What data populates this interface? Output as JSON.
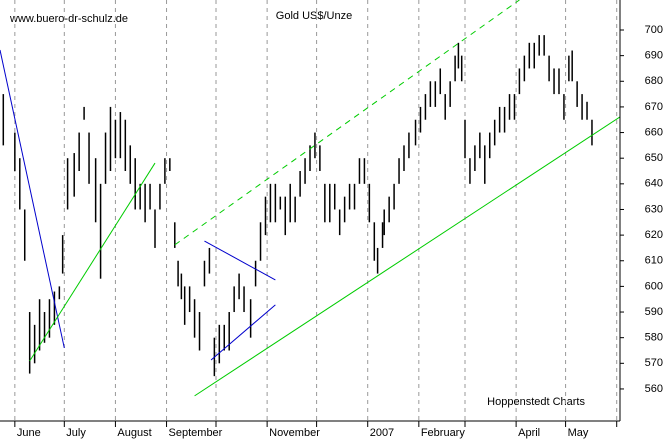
{
  "chart_data": {
    "type": "ohlc",
    "title": "Gold US$/Unze",
    "source": "www.buero-dr-schulz.de",
    "credit": "Hoppenstedt Charts",
    "color": "#000000",
    "xlim": [
      -9,
      367
    ],
    "ylim": [
      547.5,
      711.7
    ],
    "yticks": [
      560,
      570,
      580,
      590,
      600,
      610,
      620,
      630,
      640,
      650,
      660,
      670,
      680,
      690,
      700
    ],
    "xticks": [
      {
        "value": 0,
        "label": "June"
      },
      {
        "value": 30,
        "label": "July"
      },
      {
        "value": 61,
        "label": "August"
      },
      {
        "value": 92,
        "label": "September"
      },
      {
        "value": 122,
        "label": null
      },
      {
        "value": 153,
        "label": "November"
      },
      {
        "value": 183,
        "label": null
      },
      {
        "value": 214,
        "label": "2007"
      },
      {
        "value": 245,
        "label": "February"
      },
      {
        "value": 273,
        "label": null
      },
      {
        "value": 304,
        "label": "April"
      },
      {
        "value": 334,
        "label": "May"
      },
      {
        "value": 365,
        "label": null
      }
    ],
    "grid": true,
    "x": [
      -7,
      0,
      3,
      6,
      9,
      12,
      15,
      18,
      21,
      24,
      27,
      29,
      32,
      36,
      39,
      42,
      45,
      49,
      52,
      55,
      58,
      61,
      64,
      67,
      70,
      73,
      76,
      79,
      82,
      85,
      88,
      91,
      94,
      97,
      99,
      101,
      103,
      106,
      109,
      112,
      115,
      118,
      121,
      124,
      127,
      130,
      133,
      136,
      139,
      143,
      146,
      149,
      152,
      155,
      158,
      161,
      164,
      167,
      170,
      173,
      176,
      179,
      182,
      185,
      188,
      191,
      194,
      197,
      200,
      203,
      206,
      209,
      212,
      215,
      218,
      220,
      223,
      224,
      227,
      230,
      233,
      236,
      239,
      243,
      246,
      249,
      252,
      255,
      258,
      261,
      264,
      267,
      269,
      271,
      273,
      276,
      279,
      282,
      285,
      288,
      291,
      294,
      297,
      300,
      303,
      306,
      309,
      312,
      315,
      318,
      321,
      324,
      327,
      330,
      333,
      336,
      338,
      341,
      344,
      347,
      350
    ],
    "high": [
      675,
      660,
      650,
      630,
      590,
      585,
      595,
      590,
      595,
      598,
      600,
      620,
      650,
      652,
      660,
      670,
      660,
      650,
      640,
      660,
      670,
      665,
      668,
      665,
      655,
      650,
      640,
      640,
      640,
      630,
      640,
      650,
      650,
      625,
      610,
      605,
      600,
      600,
      595,
      590,
      610,
      615,
      580,
      585,
      585,
      590,
      600,
      605,
      600,
      595,
      610,
      625,
      635,
      640,
      640,
      635,
      635,
      640,
      635,
      645,
      650,
      655,
      660,
      655,
      640,
      640,
      640,
      630,
      635,
      640,
      640,
      650,
      650,
      640,
      625,
      615,
      625,
      630,
      635,
      640,
      650,
      655,
      660,
      665,
      670,
      675,
      680,
      680,
      685,
      675,
      680,
      690,
      695,
      690,
      665,
      650,
      655,
      660,
      655,
      660,
      665,
      670,
      670,
      675,
      675,
      685,
      690,
      695,
      695,
      698,
      698,
      690,
      685,
      685,
      675,
      690,
      692,
      680,
      675,
      672,
      665
    ],
    "low": [
      655,
      645,
      630,
      610,
      566,
      570,
      575,
      578,
      580,
      585,
      595,
      605,
      630,
      635,
      645,
      665,
      640,
      625,
      603,
      640,
      645,
      650,
      650,
      645,
      640,
      630,
      630,
      625,
      630,
      615,
      630,
      640,
      645,
      615,
      600,
      595,
      585,
      590,
      580,
      575,
      600,
      605,
      565,
      570,
      575,
      575,
      590,
      595,
      590,
      580,
      600,
      610,
      620,
      625,
      625,
      630,
      620,
      625,
      625,
      635,
      640,
      645,
      650,
      645,
      625,
      625,
      630,
      620,
      625,
      630,
      630,
      640,
      640,
      625,
      610,
      605,
      615,
      620,
      625,
      630,
      640,
      645,
      650,
      655,
      660,
      665,
      670,
      670,
      675,
      665,
      670,
      680,
      685,
      680,
      650,
      640,
      645,
      650,
      640,
      650,
      655,
      660,
      660,
      665,
      665,
      675,
      680,
      685,
      685,
      690,
      690,
      680,
      675,
      675,
      665,
      680,
      680,
      670,
      665,
      665,
      655
    ],
    "trendlines": [
      {
        "color": "#0000cc",
        "dashed": false,
        "x": [
          -9,
          30
        ],
        "y": [
          692.2,
          576
        ]
      },
      {
        "color": "#00cc00",
        "dashed": false,
        "x": [
          9,
          85
        ],
        "y": [
          570.9,
          648.1
        ]
      },
      {
        "color": "#00cc00",
        "dashed": true,
        "x": [
          97,
          306
        ],
        "y": [
          616.2,
          711.7
        ]
      },
      {
        "color": "#0000cc",
        "dashed": false,
        "x": [
          115,
          158
        ],
        "y": [
          617.7,
          602.5
        ]
      },
      {
        "color": "#0000cc",
        "dashed": false,
        "x": [
          119,
          158
        ],
        "y": [
          571.3,
          592.8
        ]
      },
      {
        "color": "#00cc00",
        "dashed": false,
        "x": [
          109,
          367
        ],
        "y": [
          557.3,
          666.1
        ]
      }
    ]
  }
}
